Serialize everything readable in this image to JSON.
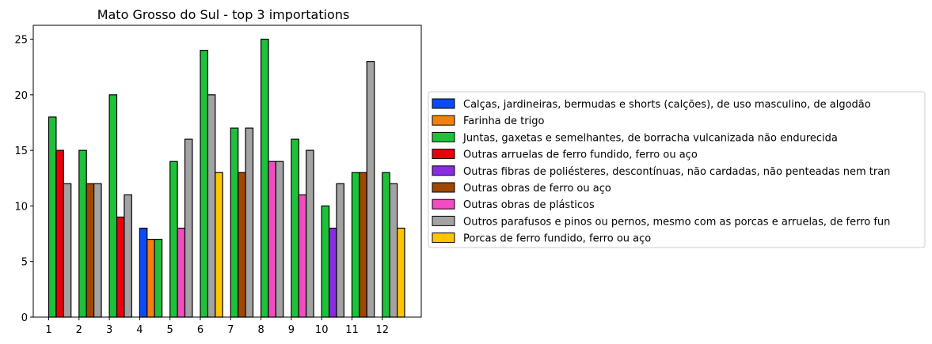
{
  "chart_data": {
    "type": "bar",
    "title": "Mato Grosso do Sul - top 3 importations",
    "xlabel": "",
    "ylabel": "",
    "ylim": [
      0,
      26.25
    ],
    "yticks": [
      0,
      5,
      10,
      15,
      20,
      25
    ],
    "categories": [
      "1",
      "2",
      "3",
      "4",
      "5",
      "6",
      "7",
      "8",
      "9",
      "10",
      "11",
      "12"
    ],
    "grid": false,
    "legend_position": "right",
    "series": [
      {
        "name": "Calças, jardineiras, bermudas e shorts (calções), de uso masculino, de algodão",
        "color": "#0b4bf5",
        "values": [
          null,
          null,
          null,
          8,
          null,
          null,
          null,
          null,
          null,
          null,
          null,
          null
        ]
      },
      {
        "name": "Farinha de trigo",
        "color": "#f5800b",
        "values": [
          null,
          null,
          null,
          7,
          null,
          null,
          null,
          null,
          null,
          null,
          null,
          null
        ]
      },
      {
        "name": "Juntas, gaxetas e semelhantes, de borracha vulcanizada não endurecida",
        "color": "#1dc23a",
        "values": [
          18,
          15,
          20,
          7,
          14,
          24,
          17,
          25,
          16,
          10,
          13,
          13
        ]
      },
      {
        "name": "Outras arruelas de ferro fundido, ferro ou aço",
        "color": "#e8000b",
        "values": [
          15,
          null,
          9,
          null,
          null,
          null,
          null,
          null,
          null,
          null,
          null,
          null
        ]
      },
      {
        "name": "Outras fibras de poliésteres, descontínuas, não cardadas, não penteadas nem tran",
        "color": "#8b2be2",
        "values": [
          null,
          null,
          null,
          null,
          null,
          null,
          null,
          null,
          null,
          8,
          null,
          null
        ]
      },
      {
        "name": "Outras obras de ferro ou aço",
        "color": "#9f4800",
        "values": [
          null,
          12,
          null,
          null,
          null,
          null,
          13,
          null,
          null,
          null,
          13,
          null
        ]
      },
      {
        "name": "Outras obras de plásticos",
        "color": "#f14cc1",
        "values": [
          null,
          null,
          null,
          null,
          8,
          null,
          null,
          14,
          11,
          null,
          null,
          null
        ]
      },
      {
        "name": "Outros parafusos e pinos ou pernos, mesmo com as porcas e arruelas, de ferro fun",
        "color": "#a3a3a3",
        "values": [
          12,
          12,
          11,
          null,
          16,
          20,
          17,
          14,
          15,
          12,
          23,
          12
        ]
      },
      {
        "name": "Porcas de ferro fundido, ferro ou aço",
        "color": "#ffc400",
        "values": [
          null,
          null,
          null,
          null,
          null,
          13,
          null,
          null,
          null,
          null,
          null,
          8
        ]
      }
    ]
  }
}
